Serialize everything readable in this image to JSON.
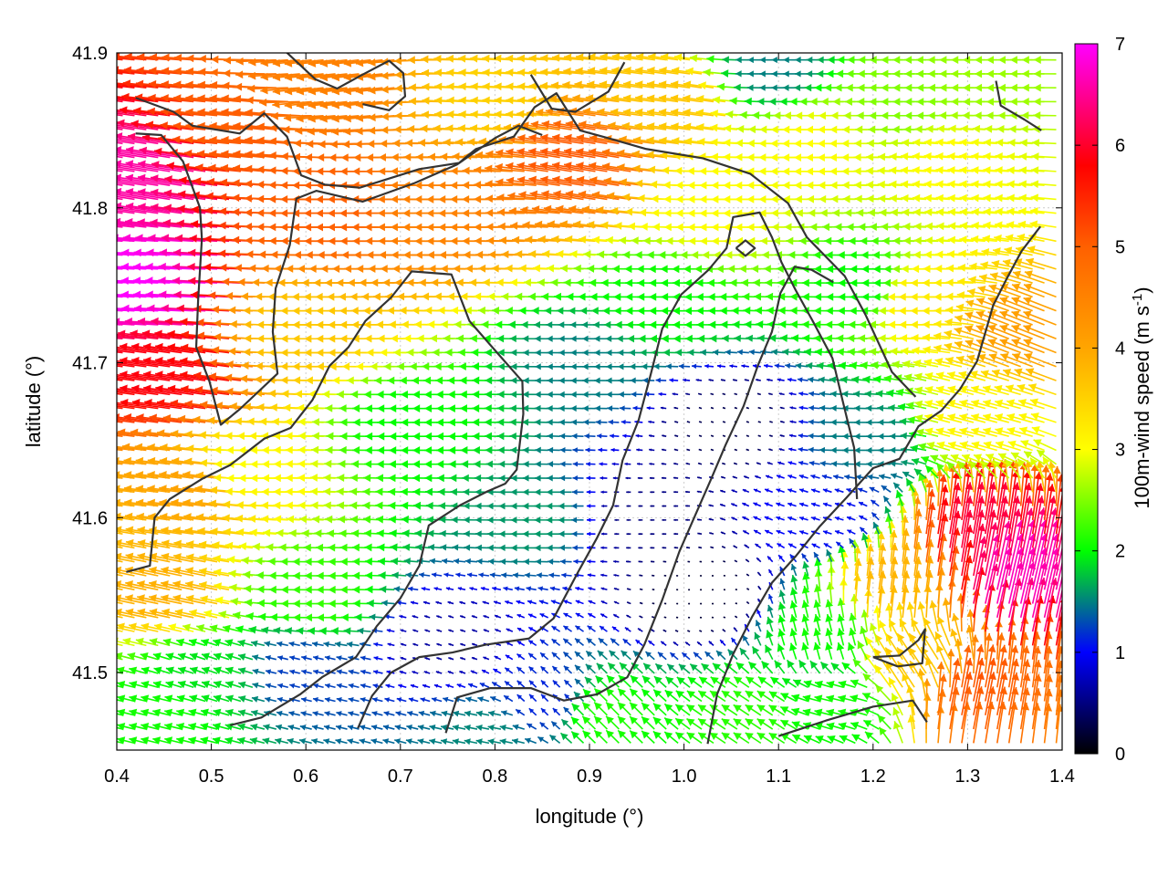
{
  "chart_data": {
    "type": "vector-field",
    "xlabel": "longitude (°)",
    "ylabel": "latitude (°)",
    "xlim": [
      0.4,
      1.4
    ],
    "ylim": [
      41.45,
      41.9
    ],
    "xticks": [
      {
        "value": 0.4,
        "label": "0.4"
      },
      {
        "value": 0.5,
        "label": "0.5"
      },
      {
        "value": 0.6,
        "label": "0.6"
      },
      {
        "value": 0.7,
        "label": "0.7"
      },
      {
        "value": 0.8,
        "label": "0.8"
      },
      {
        "value": 0.9,
        "label": "0.9"
      },
      {
        "value": 1.0,
        "label": "1.0"
      },
      {
        "value": 1.1,
        "label": "1.1"
      },
      {
        "value": 1.2,
        "label": "1.2"
      },
      {
        "value": 1.3,
        "label": "1.3"
      },
      {
        "value": 1.4,
        "label": "1.4"
      }
    ],
    "yticks": [
      {
        "value": 41.5,
        "label": "41.5"
      },
      {
        "value": 41.6,
        "label": "41.6"
      },
      {
        "value": 41.7,
        "label": "41.7"
      },
      {
        "value": 41.8,
        "label": "41.8"
      },
      {
        "value": 41.9,
        "label": "41.9"
      }
    ],
    "grid": true,
    "colorbar": {
      "label_main": "100m-wind speed (m s",
      "label_sup": "-1",
      "label_close": ")",
      "min": 0,
      "max": 7,
      "ticks": [
        {
          "value": 0,
          "label": "0"
        },
        {
          "value": 1,
          "label": "1"
        },
        {
          "value": 2,
          "label": "2"
        },
        {
          "value": 3,
          "label": "3"
        },
        {
          "value": 4,
          "label": "4"
        },
        {
          "value": 5,
          "label": "5"
        },
        {
          "value": 6,
          "label": "6"
        },
        {
          "value": 7,
          "label": "7"
        }
      ],
      "colormap": [
        {
          "v": 0,
          "color": "#000000"
        },
        {
          "v": 1,
          "color": "#0000ff"
        },
        {
          "v": 1.5,
          "color": "#008080"
        },
        {
          "v": 2,
          "color": "#00ff00"
        },
        {
          "v": 3,
          "color": "#ffff00"
        },
        {
          "v": 4,
          "color": "#ffa500"
        },
        {
          "v": 5,
          "color": "#ff6000"
        },
        {
          "v": 5.8,
          "color": "#ff0000"
        },
        {
          "v": 7,
          "color": "#ff00ff"
        }
      ]
    },
    "grid_step": {
      "dlon": 0.0125,
      "dlat": 0.009
    },
    "wind_regions": [
      {
        "lon": 0.45,
        "lat": 41.75,
        "u": -7.0,
        "v": 0.3
      },
      {
        "lon": 0.44,
        "lat": 41.82,
        "u": -6.5,
        "v": 1.0
      },
      {
        "lon": 0.47,
        "lat": 41.69,
        "u": -5.8,
        "v": 0.8
      },
      {
        "lon": 0.5,
        "lat": 41.62,
        "u": -4.0,
        "v": 0.5
      },
      {
        "lon": 0.46,
        "lat": 41.55,
        "u": -3.8,
        "v": 0.8
      },
      {
        "lon": 0.55,
        "lat": 41.85,
        "u": -5.0,
        "v": 0.5
      },
      {
        "lon": 0.65,
        "lat": 41.8,
        "u": -5.0,
        "v": 0.0
      },
      {
        "lon": 0.78,
        "lat": 41.8,
        "u": -4.5,
        "v": 0.0
      },
      {
        "lon": 0.62,
        "lat": 41.72,
        "u": -3.6,
        "v": 0.0
      },
      {
        "lon": 0.9,
        "lat": 41.83,
        "u": -5.0,
        "v": 0.8
      },
      {
        "lon": 0.82,
        "lat": 41.87,
        "u": -3.5,
        "v": 0.2
      },
      {
        "lon": 0.64,
        "lat": 41.88,
        "u": -4.5,
        "v": -0.5
      },
      {
        "lon": 0.55,
        "lat": 41.63,
        "u": -3.0,
        "v": 0.0
      },
      {
        "lon": 0.62,
        "lat": 41.55,
        "u": -2.2,
        "v": 0.0
      },
      {
        "lon": 0.72,
        "lat": 41.66,
        "u": -2.0,
        "v": 0.0
      },
      {
        "lon": 0.85,
        "lat": 41.6,
        "u": -1.6,
        "v": 0.0
      },
      {
        "lon": 0.75,
        "lat": 41.52,
        "u": -0.6,
        "v": 0.2
      },
      {
        "lon": 0.6,
        "lat": 41.5,
        "u": -1.2,
        "v": 0.3
      },
      {
        "lon": 0.9,
        "lat": 41.7,
        "u": -1.5,
        "v": 0.0
      },
      {
        "lon": 0.96,
        "lat": 41.6,
        "u": -0.5,
        "v": 0.0
      },
      {
        "lon": 1.02,
        "lat": 41.55,
        "u": -0.2,
        "v": 0.0
      },
      {
        "lon": 1.05,
        "lat": 41.66,
        "u": -0.3,
        "v": 0.1
      },
      {
        "lon": 0.99,
        "lat": 41.74,
        "u": -2.0,
        "v": 0.0
      },
      {
        "lon": 1.05,
        "lat": 41.8,
        "u": -3.0,
        "v": 0.0
      },
      {
        "lon": 1.15,
        "lat": 41.84,
        "u": -3.0,
        "v": 0.0
      },
      {
        "lon": 1.25,
        "lat": 41.87,
        "u": -2.5,
        "v": 0.0
      },
      {
        "lon": 1.1,
        "lat": 41.89,
        "u": -1.5,
        "v": 0.0
      },
      {
        "lon": 1.2,
        "lat": 41.75,
        "u": -2.0,
        "v": 0.0
      },
      {
        "lon": 1.27,
        "lat": 41.74,
        "u": -3.2,
        "v": 0.0
      },
      {
        "lon": 1.37,
        "lat": 41.72,
        "u": -3.8,
        "v": 1.5
      },
      {
        "lon": 1.32,
        "lat": 41.66,
        "u": -3.0,
        "v": 0.8
      },
      {
        "lon": 1.2,
        "lat": 41.65,
        "u": -1.5,
        "v": 0.0
      },
      {
        "lon": 1.15,
        "lat": 41.6,
        "u": -1.0,
        "v": 0.3
      },
      {
        "lon": 1.15,
        "lat": 41.52,
        "u": -0.5,
        "v": 2.0
      },
      {
        "lon": 1.22,
        "lat": 41.55,
        "u": 0.5,
        "v": 3.8
      },
      {
        "lon": 1.31,
        "lat": 41.58,
        "u": 1.0,
        "v": 6.0
      },
      {
        "lon": 1.35,
        "lat": 41.55,
        "u": 1.5,
        "v": 6.5
      },
      {
        "lon": 1.25,
        "lat": 41.5,
        "u": -2.0,
        "v": 3.0
      },
      {
        "lon": 1.3,
        "lat": 41.48,
        "u": 1.0,
        "v": 5.0
      },
      {
        "lon": 1.17,
        "lat": 41.48,
        "u": -2.0,
        "v": 0.5
      },
      {
        "lon": 0.86,
        "lat": 41.48,
        "u": -0.8,
        "v": 0.8
      },
      {
        "lon": 0.92,
        "lat": 41.47,
        "u": -1.5,
        "v": 1.5
      },
      {
        "lon": 0.8,
        "lat": 41.46,
        "u": -1.5,
        "v": 0.3
      },
      {
        "lon": 1.07,
        "lat": 41.47,
        "u": -1.8,
        "v": 1.2
      },
      {
        "lon": 0.45,
        "lat": 41.47,
        "u": -2.0,
        "v": 0.5
      },
      {
        "lon": 0.5,
        "lat": 41.5,
        "u": -1.8,
        "v": 0.6
      },
      {
        "lon": 1.3,
        "lat": 41.83,
        "u": -3.0,
        "v": 0.2
      },
      {
        "lon": 1.0,
        "lat": 41.87,
        "u": -3.6,
        "v": 0.5
      },
      {
        "lon": 1.33,
        "lat": 41.88,
        "u": -2.6,
        "v": 0.0
      }
    ],
    "contours": [
      [
        [
          0.42,
          41.871
        ],
        [
          0.46,
          41.862
        ],
        [
          0.48,
          41.853
        ],
        [
          0.53,
          41.848
        ],
        [
          0.556,
          41.861
        ],
        [
          0.58,
          41.846
        ],
        [
          0.595,
          41.821
        ],
        [
          0.62,
          41.815
        ],
        [
          0.657,
          41.813
        ],
        [
          0.72,
          41.825
        ],
        [
          0.762,
          41.829
        ],
        [
          0.78,
          41.838
        ],
        [
          0.82,
          41.846
        ],
        [
          0.842,
          41.865
        ],
        [
          0.865,
          41.874
        ],
        [
          0.89,
          41.85
        ],
        [
          0.92,
          41.845
        ],
        [
          0.96,
          41.838
        ],
        [
          1.02,
          41.832
        ],
        [
          1.07,
          41.822
        ],
        [
          1.11,
          41.803
        ],
        [
          1.13,
          41.781
        ],
        [
          1.17,
          41.756
        ],
        [
          1.192,
          41.731
        ],
        [
          1.22,
          41.694
        ],
        [
          1.245,
          41.678
        ]
      ],
      [
        [
          0.42,
          41.848
        ],
        [
          0.447,
          41.847
        ],
        [
          0.47,
          41.83
        ],
        [
          0.488,
          41.8
        ],
        [
          0.49,
          41.78
        ],
        [
          0.486,
          41.74
        ],
        [
          0.484,
          41.71
        ],
        [
          0.498,
          41.688
        ],
        [
          0.51,
          41.66
        ],
        [
          0.53,
          41.67
        ],
        [
          0.57,
          41.693
        ],
        [
          0.565,
          41.72
        ],
        [
          0.568,
          41.748
        ],
        [
          0.583,
          41.776
        ],
        [
          0.59,
          41.806
        ],
        [
          0.611,
          41.811
        ],
        [
          0.66,
          41.804
        ],
        [
          0.715,
          41.816
        ],
        [
          0.76,
          41.828
        ],
        [
          0.8,
          41.845
        ],
        [
          0.825,
          41.853
        ],
        [
          0.85,
          41.847
        ]
      ],
      [
        [
          0.41,
          41.565
        ],
        [
          0.435,
          41.569
        ],
        [
          0.44,
          41.6
        ],
        [
          0.456,
          41.612
        ],
        [
          0.49,
          41.625
        ],
        [
          0.52,
          41.634
        ],
        [
          0.556,
          41.651
        ],
        [
          0.584,
          41.658
        ],
        [
          0.607,
          41.676
        ],
        [
          0.625,
          41.698
        ],
        [
          0.645,
          41.71
        ],
        [
          0.663,
          41.727
        ],
        [
          0.69,
          41.742
        ],
        [
          0.712,
          41.759
        ],
        [
          0.754,
          41.757
        ],
        [
          0.773,
          41.727
        ],
        [
          0.803,
          41.706
        ],
        [
          0.829,
          41.688
        ],
        [
          0.83,
          41.667
        ],
        [
          0.823,
          41.631
        ],
        [
          0.811,
          41.622
        ],
        [
          0.792,
          41.617
        ],
        [
          0.763,
          41.608
        ],
        [
          0.73,
          41.595
        ],
        [
          0.72,
          41.569
        ],
        [
          0.7,
          41.548
        ],
        [
          0.675,
          41.53
        ],
        [
          0.653,
          41.51
        ],
        [
          0.617,
          41.497
        ],
        [
          0.594,
          41.486
        ],
        [
          0.553,
          41.471
        ],
        [
          0.52,
          41.466
        ]
      ],
      [
        [
          0.655,
          41.464
        ],
        [
          0.67,
          41.485
        ],
        [
          0.69,
          41.5
        ],
        [
          0.72,
          41.51
        ],
        [
          0.755,
          41.513
        ],
        [
          0.79,
          41.518
        ],
        [
          0.836,
          41.522
        ],
        [
          0.862,
          41.535
        ],
        [
          0.888,
          41.565
        ],
        [
          0.908,
          41.587
        ],
        [
          0.925,
          41.608
        ],
        [
          0.935,
          41.637
        ],
        [
          0.952,
          41.663
        ],
        [
          0.965,
          41.693
        ],
        [
          0.977,
          41.722
        ],
        [
          0.997,
          41.744
        ],
        [
          1.026,
          41.76
        ],
        [
          1.045,
          41.774
        ],
        [
          1.052,
          41.794
        ],
        [
          1.08,
          41.797
        ],
        [
          1.093,
          41.781
        ],
        [
          1.103,
          41.765
        ],
        [
          1.118,
          41.747
        ],
        [
          1.137,
          41.726
        ],
        [
          1.157,
          41.703
        ],
        [
          1.168,
          41.675
        ],
        [
          1.18,
          41.645
        ],
        [
          1.183,
          41.612
        ]
      ],
      [
        [
          0.748,
          41.461
        ],
        [
          0.76,
          41.484
        ],
        [
          0.795,
          41.49
        ],
        [
          0.838,
          41.49
        ],
        [
          0.873,
          41.482
        ],
        [
          0.908,
          41.486
        ],
        [
          0.94,
          41.497
        ],
        [
          0.958,
          41.518
        ],
        [
          0.977,
          41.547
        ],
        [
          0.995,
          41.578
        ],
        [
          1.01,
          41.599
        ],
        [
          1.028,
          41.624
        ],
        [
          1.044,
          41.647
        ],
        [
          1.063,
          41.672
        ],
        [
          1.078,
          41.698
        ],
        [
          1.093,
          41.72
        ],
        [
          1.102,
          41.745
        ],
        [
          1.117,
          41.762
        ],
        [
          1.135,
          41.76
        ],
        [
          1.158,
          41.752
        ]
      ],
      [
        [
          1.025,
          41.454
        ],
        [
          1.035,
          41.486
        ],
        [
          1.052,
          41.512
        ],
        [
          1.072,
          41.536
        ],
        [
          1.093,
          41.558
        ],
        [
          1.118,
          41.575
        ],
        [
          1.143,
          41.594
        ],
        [
          1.172,
          41.613
        ],
        [
          1.2,
          41.632
        ],
        [
          1.228,
          41.638
        ],
        [
          1.248,
          41.659
        ],
        [
          1.272,
          41.669
        ],
        [
          1.292,
          41.683
        ],
        [
          1.31,
          41.701
        ],
        [
          1.327,
          41.737
        ],
        [
          1.342,
          41.755
        ],
        [
          1.357,
          41.772
        ],
        [
          1.377,
          41.788
        ]
      ],
      [
        [
          0.838,
          41.886
        ],
        [
          0.86,
          41.864
        ],
        [
          0.885,
          41.862
        ],
        [
          0.92,
          41.875
        ],
        [
          0.937,
          41.894
        ]
      ],
      [
        [
          0.575,
          41.903
        ],
        [
          0.61,
          41.883
        ],
        [
          0.633,
          41.877
        ],
        [
          0.657,
          41.885
        ],
        [
          0.688,
          41.895
        ],
        [
          0.703,
          41.887
        ],
        [
          0.705,
          41.872
        ],
        [
          0.688,
          41.863
        ],
        [
          0.66,
          41.867
        ]
      ],
      [
        [
          1.2,
          41.51
        ],
        [
          1.228,
          41.511
        ],
        [
          1.248,
          41.521
        ],
        [
          1.255,
          41.528
        ],
        [
          1.252,
          41.506
        ],
        [
          1.226,
          41.504
        ],
        [
          1.2,
          41.51
        ]
      ],
      [
        [
          1.1,
          41.459
        ],
        [
          1.15,
          41.469
        ],
        [
          1.2,
          41.478
        ],
        [
          1.242,
          41.482
        ],
        [
          1.257,
          41.468
        ]
      ],
      [
        [
          1.33,
          41.882
        ],
        [
          1.335,
          41.866
        ],
        [
          1.36,
          41.857
        ],
        [
          1.378,
          41.85
        ]
      ],
      [
        [
          1.055,
          41.774
        ],
        [
          1.065,
          41.779
        ],
        [
          1.075,
          41.774
        ],
        [
          1.065,
          41.769
        ],
        [
          1.055,
          41.774
        ]
      ]
    ]
  }
}
